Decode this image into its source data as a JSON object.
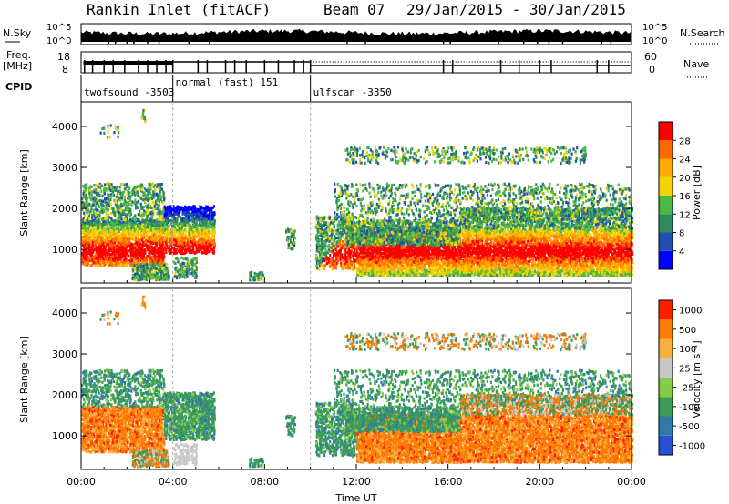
{
  "header": {
    "station": "Rankin Inlet (fitACF)",
    "beam": "Beam 07",
    "date_range": "29/Jan/2015 - 30/Jan/2015"
  },
  "strips": {
    "nsky_label": "N.Sky",
    "nsky_ticks": [
      "10^5",
      "10^0"
    ],
    "nsearch_label": "N.Search",
    "nsearch_ticks": [
      "10^5",
      "10^0"
    ],
    "freq_label": "Freq.",
    "freq_unit": "[MHz]",
    "freq_ticks": [
      "18",
      "8"
    ],
    "nave_label": "Nave",
    "nave_ticks": [
      "60",
      "0"
    ],
    "cpid_label": "CPID",
    "cpid_segments": [
      {
        "label": "twofsound -3503",
        "start": 0.0,
        "end": 4.0
      },
      {
        "label": "normal (fast) 151",
        "start": 4.0,
        "end": 10.0
      },
      {
        "label": "ulfscan -3350",
        "start": 10.0,
        "end": 24.0
      }
    ]
  },
  "power_scale": {
    "title": "Power [dB]",
    "ticks": [
      "28",
      "24",
      "20",
      "16",
      "12",
      "8",
      "4"
    ],
    "colors": [
      "#0000ff",
      "#1f4fb0",
      "#2e8a5a",
      "#4cb848",
      "#f2d400",
      "#ffa800",
      "#ff6a00",
      "#ff0000"
    ]
  },
  "velocity_scale": {
    "title": "Velocity [m s⁻¹]",
    "ticks": [
      "1000",
      "500",
      "100",
      "25",
      "-25",
      "-100",
      "-500",
      "-1000"
    ],
    "colors": [
      "#2a4fd0",
      "#2f7aa8",
      "#3a9c58",
      "#86cc46",
      "#c8c8c8",
      "#f5b040",
      "#ff7a00",
      "#ff2000"
    ]
  },
  "chart_data": {
    "type": "heatmap",
    "xlabel": "Time UT",
    "ylabel": "Slant Range [km]",
    "xlim": [
      0,
      24
    ],
    "ylim": [
      180,
      4600
    ],
    "xticks": [
      "00:00",
      "04:00",
      "08:00",
      "12:00",
      "16:00",
      "20:00",
      "00:00"
    ],
    "yticks": [
      "1000",
      "2000",
      "3000",
      "4000"
    ],
    "panels": [
      "power",
      "velocity"
    ]
  }
}
